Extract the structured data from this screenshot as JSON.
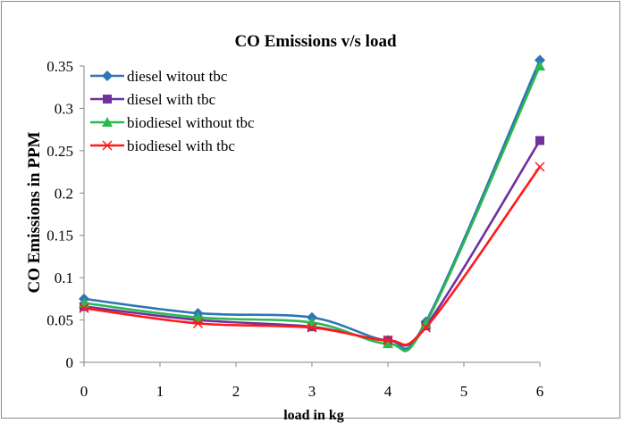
{
  "chart_data": {
    "type": "line",
    "title": "CO Emissions v/s load",
    "xlabel": "load in kg",
    "ylabel": "CO Emissions in PPM",
    "xlim": [
      0,
      6
    ],
    "ylim": [
      0,
      0.35
    ],
    "x_ticks": [
      "0",
      "1",
      "2",
      "3",
      "4",
      "5",
      "6"
    ],
    "y_ticks": [
      "0",
      "0.05",
      "0.1",
      "0.15",
      "0.2",
      "0.25",
      "0.3",
      "0.35"
    ],
    "grid": false,
    "legend_position": "top-left",
    "series": [
      {
        "name": "diesel witout tbc",
        "color": "#2e75b6",
        "marker": "diamond",
        "x": [
          0,
          1.5,
          3,
          4,
          4.5,
          6
        ],
        "y": [
          0.075,
          0.058,
          0.053,
          0.026,
          0.048,
          0.357
        ]
      },
      {
        "name": "diesel with tbc",
        "color": "#7030a0",
        "marker": "square",
        "x": [
          0,
          1.5,
          3,
          4,
          4.5,
          6
        ],
        "y": [
          0.066,
          0.05,
          0.042,
          0.026,
          0.043,
          0.262
        ]
      },
      {
        "name": "biodiesel without tbc",
        "color": "#2cb84e",
        "marker": "triangle",
        "x": [
          0,
          1.5,
          3,
          4,
          4.5,
          6
        ],
        "y": [
          0.07,
          0.053,
          0.047,
          0.022,
          0.046,
          0.35
        ]
      },
      {
        "name": "biodiesel with tbc",
        "color": "#ff1a1a",
        "marker": "cross",
        "x": [
          0,
          1.5,
          3,
          4,
          4.5,
          6
        ],
        "y": [
          0.064,
          0.046,
          0.041,
          0.026,
          0.041,
          0.231
        ]
      }
    ]
  }
}
